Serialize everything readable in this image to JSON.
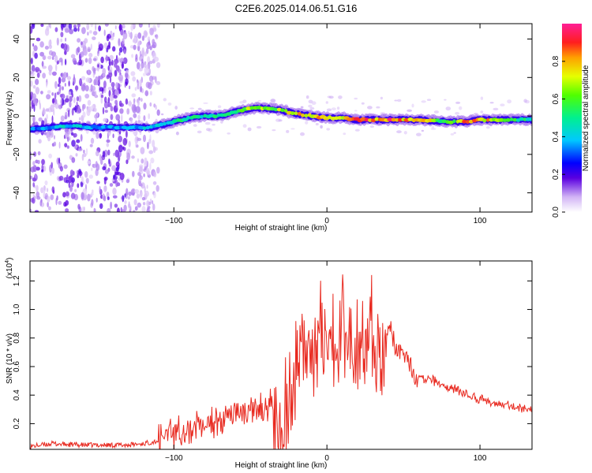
{
  "title": "C2E6.2025.014.06.51.G16",
  "chart_data": [
    {
      "type": "heatmap",
      "xlabel": "Height of straight line (km)",
      "ylabel": "Frequency (Hz)",
      "xlim": [
        -194,
        134
      ],
      "ylim": [
        -50,
        48
      ],
      "xticks": [
        -100,
        0,
        100
      ],
      "yticks": [
        -40,
        -20,
        0,
        20,
        40
      ],
      "colorbar": {
        "label": "Normalized spectral amplitude",
        "range": [
          0.0,
          1.0
        ],
        "ticks": [
          "0.0",
          "0.2",
          "0.4",
          "0.6",
          "0.8"
        ]
      },
      "ridge": {
        "x": [
          -194,
          -170,
          -150,
          -130,
          -115,
          -100,
          -90,
          -80,
          -70,
          -60,
          -50,
          -40,
          -30,
          -20,
          -10,
          0,
          10,
          20,
          40,
          60,
          80,
          90,
          100,
          120,
          134
        ],
        "freq": [
          -7,
          -5,
          -6,
          -6,
          -6,
          -3,
          -1,
          0,
          0,
          2,
          4,
          4,
          3,
          1,
          0,
          -1,
          -1,
          -2,
          -2,
          -2,
          -3,
          -3,
          -2,
          -2,
          -2
        ],
        "amplitude": [
          0.35,
          0.45,
          0.4,
          0.4,
          0.45,
          0.5,
          0.55,
          0.55,
          0.6,
          0.65,
          0.7,
          0.8,
          0.7,
          0.85,
          0.8,
          0.85,
          0.85,
          0.9,
          0.95,
          0.9,
          0.6,
          0.95,
          0.9,
          0.6,
          0.55
        ]
      }
    },
    {
      "type": "line",
      "xlabel": "Height of straight line (km)",
      "ylabel": "SNR (10 * v/v)",
      "y_multiplier": "(x10",
      "y_multiplier_exp": "4",
      "xlim": [
        -194,
        134
      ],
      "ylim": [
        0.02,
        1.34
      ],
      "xticks": [
        -100,
        0,
        100
      ],
      "yticks": [
        0.2,
        0.4,
        0.6,
        0.8,
        1.0,
        1.2
      ],
      "series": [
        {
          "color": "#e8281e",
          "x": [
            -194,
            -180,
            -160,
            -140,
            -130,
            -120,
            -110,
            -100,
            -95,
            -90,
            -85,
            -80,
            -75,
            -70,
            -65,
            -60,
            -55,
            -50,
            -45,
            -40,
            -35,
            -30,
            -25,
            -20,
            -15,
            -10,
            -5,
            0,
            5,
            10,
            15,
            20,
            25,
            30,
            35,
            40,
            45,
            50,
            55,
            60,
            70,
            80,
            90,
            100,
            110,
            120,
            134
          ],
          "y": [
            0.04,
            0.06,
            0.05,
            0.05,
            0.05,
            0.06,
            0.08,
            0.12,
            0.15,
            0.16,
            0.2,
            0.22,
            0.2,
            0.22,
            0.25,
            0.26,
            0.27,
            0.3,
            0.3,
            0.28,
            0.34,
            0.38,
            0.55,
            0.7,
            0.85,
            0.8,
            0.95,
            0.85,
            0.95,
            0.95,
            1.0,
            0.95,
            0.97,
            0.95,
            0.9,
            0.88,
            0.75,
            0.62,
            0.6,
            0.52,
            0.5,
            0.45,
            0.4,
            0.38,
            0.34,
            0.32,
            0.3
          ]
        }
      ]
    }
  ]
}
